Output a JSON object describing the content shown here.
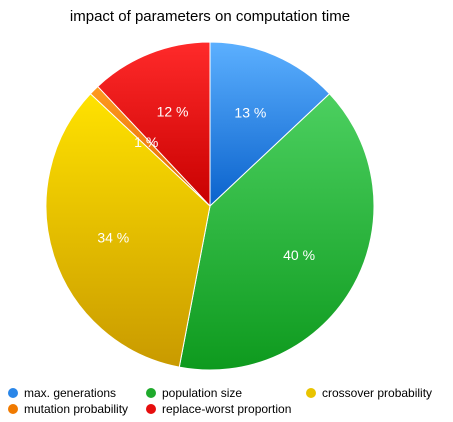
{
  "chart_data": {
    "type": "pie",
    "title": "impact of parameters on computation time",
    "slices": [
      {
        "name": "max. generations",
        "value": 13,
        "label": "13 %",
        "color": "#2a86e8"
      },
      {
        "name": "population size",
        "value": 40,
        "label": "40 %",
        "color": "#1faa2c"
      },
      {
        "name": "crossover probability",
        "value": 34,
        "label": "34 %",
        "color": "#e9c400"
      },
      {
        "name": "mutation probability",
        "value": 1,
        "label": "1 %",
        "color": "#f07a00"
      },
      {
        "name": "replace-worst proportion",
        "value": 12,
        "label": "12 %",
        "color": "#e60e0e"
      }
    ],
    "legend_placement": "bottom"
  }
}
